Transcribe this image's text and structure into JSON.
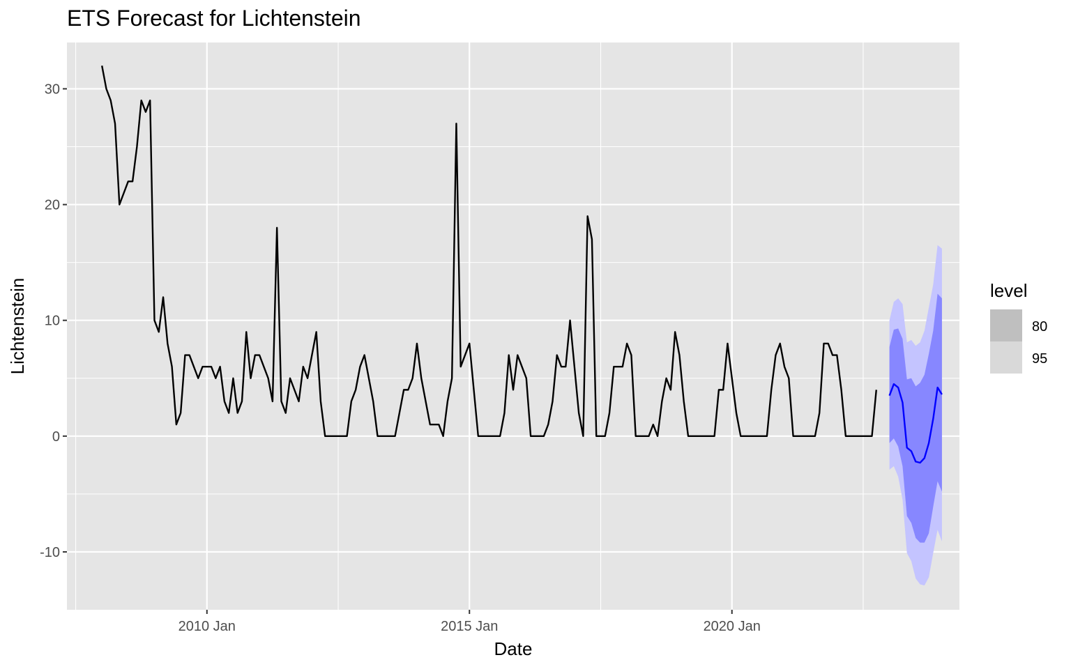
{
  "chart_data": {
    "type": "line",
    "title": "ETS Forecast for Lichtenstein",
    "xlabel": "Date",
    "ylabel": "Lichtenstein",
    "xlim": [
      "2007-05",
      "2024-05"
    ],
    "ylim": [
      -15,
      34
    ],
    "grid": true,
    "x_tick_labels": [
      "2010 Jan",
      "2015 Jan",
      "2020 Jan"
    ],
    "x_tick_dates": [
      "2010-01",
      "2015-01",
      "2020-01"
    ],
    "y_ticks": [
      -10,
      0,
      10,
      20,
      30
    ],
    "y_tick_labels": [
      "-10",
      "0",
      "10",
      "20",
      "30"
    ],
    "legend": {
      "title": "level",
      "position": "right",
      "entries": [
        "80",
        "95"
      ]
    },
    "colors": {
      "history": "#000000",
      "forecast": "#0000ff",
      "band80": "#8787ff",
      "band95": "#c4c4ff",
      "panel": "#e5e5e5",
      "grid": "#ffffff",
      "legend80": "#bfbfbf",
      "legend95": "#d9d9d9"
    },
    "history": {
      "start": "2008-01",
      "frequency": "monthly",
      "values": [
        32,
        30,
        29,
        27,
        20,
        21,
        22,
        22,
        25,
        29,
        28,
        29,
        10,
        9,
        12,
        8,
        6,
        1,
        2,
        7,
        7,
        6,
        5,
        6,
        6,
        6,
        5,
        6,
        3,
        2,
        5,
        2,
        3,
        9,
        5,
        7,
        7,
        6,
        5,
        3,
        18,
        3,
        2,
        5,
        4,
        3,
        6,
        5,
        7,
        9,
        3,
        0,
        0,
        0,
        0,
        0,
        0,
        3,
        4,
        6,
        7,
        5,
        3,
        0,
        0,
        0,
        0,
        0,
        2,
        4,
        4,
        5,
        8,
        5,
        3,
        1,
        1,
        1,
        0,
        3,
        5,
        27,
        6,
        7,
        8,
        4,
        0,
        0,
        0,
        0,
        0,
        0,
        2,
        7,
        4,
        7,
        6,
        5,
        0,
        0,
        0,
        0,
        1,
        3,
        7,
        6,
        6,
        10,
        6,
        2,
        0,
        19,
        17,
        0,
        0,
        0,
        2,
        6,
        6,
        6,
        8,
        7,
        0,
        0,
        0,
        0,
        1,
        0,
        3,
        5,
        4,
        9,
        7,
        3,
        0,
        0,
        0,
        0,
        0,
        0,
        0,
        4,
        4,
        8,
        5,
        2,
        0,
        0,
        0,
        0,
        0,
        0,
        0,
        4,
        7,
        8,
        6,
        5,
        0,
        0,
        0,
        0,
        0,
        0,
        2,
        8,
        8,
        7,
        7,
        4,
        0,
        0,
        0,
        0,
        0,
        0,
        0,
        4
      ]
    },
    "forecast": {
      "start": "2023-01",
      "frequency": "monthly",
      "mean": [
        3.5,
        4.5,
        4.2,
        2.9,
        -1.0,
        -1.3,
        -2.2,
        -2.3,
        -1.9,
        -0.6,
        1.5,
        4.2,
        3.6
      ],
      "lo80": [
        -0.6,
        -0.2,
        -0.9,
        -2.6,
        -6.9,
        -7.5,
        -8.8,
        -9.2,
        -9.2,
        -8.4,
        -6.1,
        -3.9,
        -4.8
      ],
      "hi80": [
        7.7,
        9.2,
        9.3,
        8.4,
        4.9,
        5.0,
        4.3,
        4.6,
        5.3,
        7.1,
        9.1,
        12.3,
        11.9
      ],
      "lo95": [
        -2.9,
        -2.6,
        -3.5,
        -5.5,
        -10.1,
        -10.8,
        -12.3,
        -12.8,
        -12.9,
        -12.2,
        -10.1,
        -8.1,
        -9.1
      ],
      "hi95": [
        10.0,
        11.6,
        11.9,
        11.4,
        8.1,
        8.3,
        7.8,
        8.1,
        9.1,
        11.1,
        13.1,
        16.5,
        16.2
      ]
    }
  }
}
